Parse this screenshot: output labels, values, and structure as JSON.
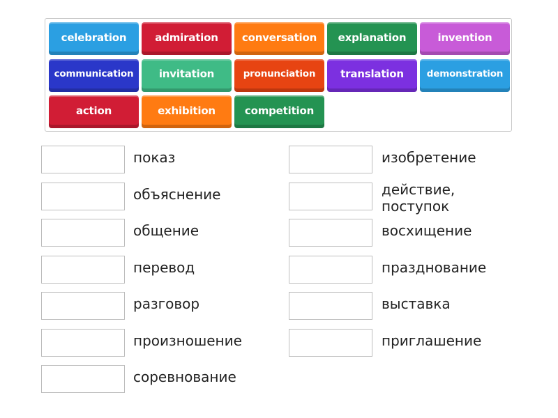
{
  "tiles": [
    {
      "text": "celebration",
      "color": "#2b9fe2"
    },
    {
      "text": "admiration",
      "color": "#d11d35"
    },
    {
      "text": "conversation",
      "color": "#ff7b12"
    },
    {
      "text": "explanation",
      "color": "#249352"
    },
    {
      "text": "invention",
      "color": "#c85bd8"
    },
    {
      "text": "communication",
      "color": "#2a37c9"
    },
    {
      "text": "invitation",
      "color": "#3fbb86"
    },
    {
      "text": "pronunciation",
      "color": "#e74412"
    },
    {
      "text": "translation",
      "color": "#7c30e0"
    },
    {
      "text": "demonstration",
      "color": "#2b9fe2"
    },
    {
      "text": "action",
      "color": "#d11d35"
    },
    {
      "text": "exhibition",
      "color": "#ff7b12"
    },
    {
      "text": "competition",
      "color": "#249352"
    }
  ],
  "left": [
    "показ",
    "объяснение",
    "общение",
    "перевод",
    "разговор",
    "произношение",
    "соревнование"
  ],
  "right": [
    "изобретение",
    "действие, поступок",
    "восхищение",
    "празднование",
    "выставка",
    "приглашение"
  ]
}
